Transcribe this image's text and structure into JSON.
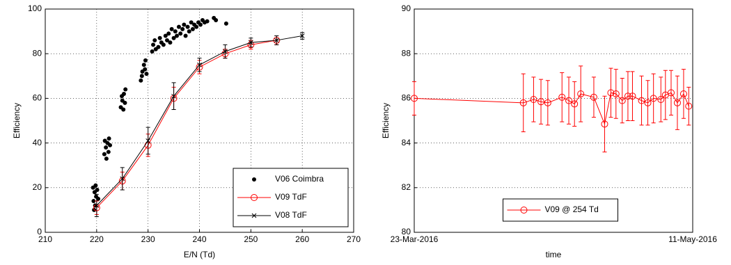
{
  "chart_data": [
    {
      "type": "line",
      "xlabel": "E/N (Td)",
      "ylabel": "Efficiency",
      "xlim": [
        210,
        270
      ],
      "xticks": [
        210,
        220,
        230,
        240,
        250,
        260,
        270
      ],
      "ylim": [
        0,
        100
      ],
      "yticks": [
        0,
        20,
        40,
        60,
        80,
        100
      ],
      "grid": true,
      "legend": "lower right",
      "series": [
        {
          "name": "V06 Coimbra",
          "color": "#000000",
          "mode": "markers",
          "marker": "dot",
          "x": [
            219.3,
            219.6,
            219.9,
            219.4,
            219.7,
            220.1,
            219.5,
            220.3,
            219.8,
            221.5,
            221.8,
            222.1,
            222.4,
            221.9,
            222.3,
            221.6,
            222.6,
            224.7,
            225,
            225.3,
            225.6,
            224.9,
            225.2,
            225.5,
            228.6,
            228.9,
            229.2,
            229.5,
            228.8,
            229.4,
            229.7,
            230.8,
            231,
            231.3,
            231.5,
            232,
            232.3,
            232.6,
            233,
            233.4,
            233.7,
            234,
            234.3,
            234.6,
            235,
            235.3,
            235.6,
            236,
            236.3,
            236.7,
            237,
            237.3,
            237.7,
            238,
            238.4,
            238.7,
            239,
            239.4,
            239.8,
            240.2,
            240.6,
            241,
            241.5,
            242.8,
            243.2,
            245.2
          ],
          "values": [
            20,
            18,
            16,
            14,
            12,
            19,
            10,
            15,
            21,
            35,
            38,
            40,
            42,
            33,
            36,
            41,
            39,
            56,
            59,
            62,
            64,
            61,
            55,
            58,
            68,
            72,
            75,
            77,
            70,
            73,
            71,
            81,
            84,
            86,
            82,
            83,
            87,
            85,
            84,
            88,
            86,
            89,
            85,
            91,
            87,
            90,
            88,
            92,
            89,
            91,
            93,
            88,
            92,
            90,
            94,
            91,
            93,
            92,
            94,
            93,
            95,
            94,
            94.5,
            96,
            95,
            93.5
          ]
        },
        {
          "name": "V09 TdF",
          "color": "#ff0000",
          "mode": "lines+markers",
          "marker": "o",
          "x": [
            220,
            225,
            230,
            235,
            240,
            245,
            250,
            255
          ],
          "values": [
            11,
            23,
            39,
            60,
            74,
            80,
            84,
            86
          ],
          "errors": [
            3,
            4,
            5,
            5,
            3,
            2,
            2,
            2
          ]
        },
        {
          "name": "V08 TdF",
          "color": "#000000",
          "mode": "lines+markers",
          "marker": "x",
          "x": [
            220,
            225,
            230,
            235,
            240,
            245,
            250,
            255,
            260
          ],
          "values": [
            12,
            24,
            41,
            61,
            75,
            81,
            85,
            86,
            88
          ],
          "errors": [
            5,
            5,
            6,
            6,
            3,
            3,
            2,
            2,
            1.5
          ]
        }
      ]
    },
    {
      "type": "line",
      "xlabel": "time",
      "ylabel": "Efficiency",
      "xlim": [
        0,
        49
      ],
      "xticks": [
        {
          "value": 0,
          "label": "23-Mar-2016"
        },
        {
          "value": 49,
          "label": "11-May-2016"
        }
      ],
      "ylim": [
        80,
        90
      ],
      "yticks": [
        80,
        82,
        84,
        86,
        88,
        90
      ],
      "grid": true,
      "legend": "lower center",
      "series": [
        {
          "name": "V09 @ 254 Td",
          "color": "#ff0000",
          "mode": "lines+markers",
          "marker": "o",
          "x": [
            0,
            19.2,
            21,
            22.3,
            23.5,
            26,
            27.2,
            28.2,
            29.3,
            31.6,
            33.5,
            34.6,
            35.5,
            36.6,
            37.6,
            38.4,
            40,
            41.1,
            42.1,
            43.4,
            44.2,
            45.2,
            46.3,
            47.4,
            48.3
          ],
          "values": [
            86.0,
            85.8,
            85.95,
            85.85,
            85.8,
            86.05,
            85.9,
            85.75,
            86.2,
            86.05,
            84.85,
            86.25,
            86.2,
            85.9,
            86.1,
            86.1,
            85.9,
            85.8,
            86.0,
            85.95,
            86.15,
            86.25,
            85.8,
            86.2,
            85.65
          ],
          "errors": [
            0.75,
            1.3,
            1.0,
            1.0,
            1.0,
            1.1,
            1.05,
            1.0,
            1.25,
            0.9,
            1.25,
            1.1,
            1.1,
            1.0,
            1.1,
            1.1,
            1.1,
            1.0,
            1.1,
            1.0,
            1.1,
            1.0,
            1.2,
            1.1,
            0.85
          ]
        }
      ]
    }
  ]
}
